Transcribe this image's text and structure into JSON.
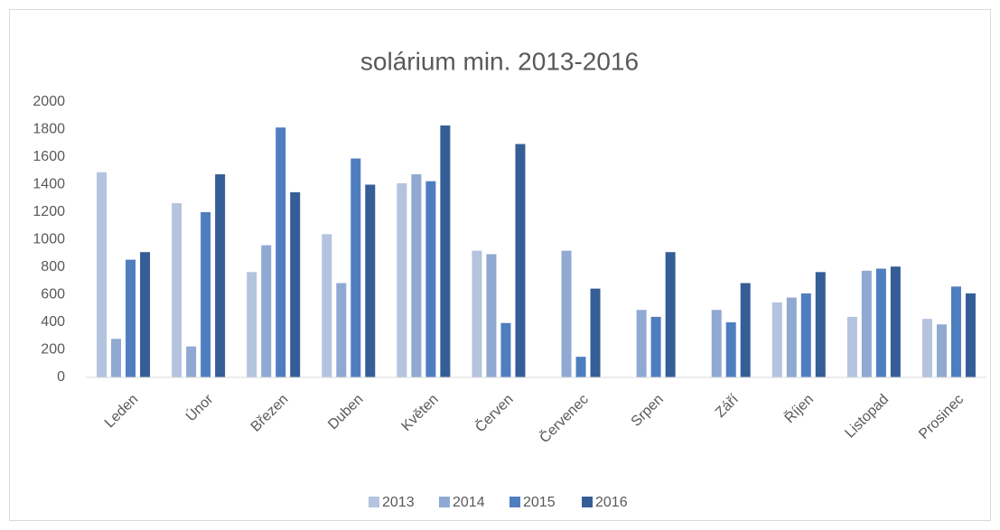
{
  "chart_data": {
    "type": "bar",
    "title": "solárium min. 2013-2016",
    "categories": [
      "Leden",
      "Únor",
      "Březen",
      "Duben",
      "Květen",
      "Červen",
      "Červenec",
      "Srpen",
      "Září",
      "Říjen",
      "Listopad",
      "Prosinec"
    ],
    "series": [
      {
        "name": "2013",
        "color": "#b4c3de",
        "values": [
          1490,
          1265,
          765,
          1040,
          1410,
          920,
          null,
          null,
          null,
          545,
          440,
          425
        ]
      },
      {
        "name": "2014",
        "color": "#8fa9d3",
        "values": [
          280,
          225,
          960,
          685,
          1475,
          895,
          920,
          490,
          490,
          580,
          775,
          385
        ]
      },
      {
        "name": "2015",
        "color": "#4f7ec0",
        "values": [
          855,
          1200,
          1815,
          1590,
          1425,
          395,
          150,
          440,
          400,
          610,
          790,
          660
        ]
      },
      {
        "name": "2016",
        "color": "#355e97",
        "values": [
          910,
          1475,
          1345,
          1400,
          1830,
          1695,
          645,
          910,
          685,
          765,
          805,
          610
        ]
      }
    ],
    "ylim": [
      0,
      2000
    ],
    "yticks": [
      0,
      200,
      400,
      600,
      800,
      1000,
      1200,
      1400,
      1600,
      1800,
      2000
    ],
    "grid": false,
    "legend": "bottom"
  }
}
